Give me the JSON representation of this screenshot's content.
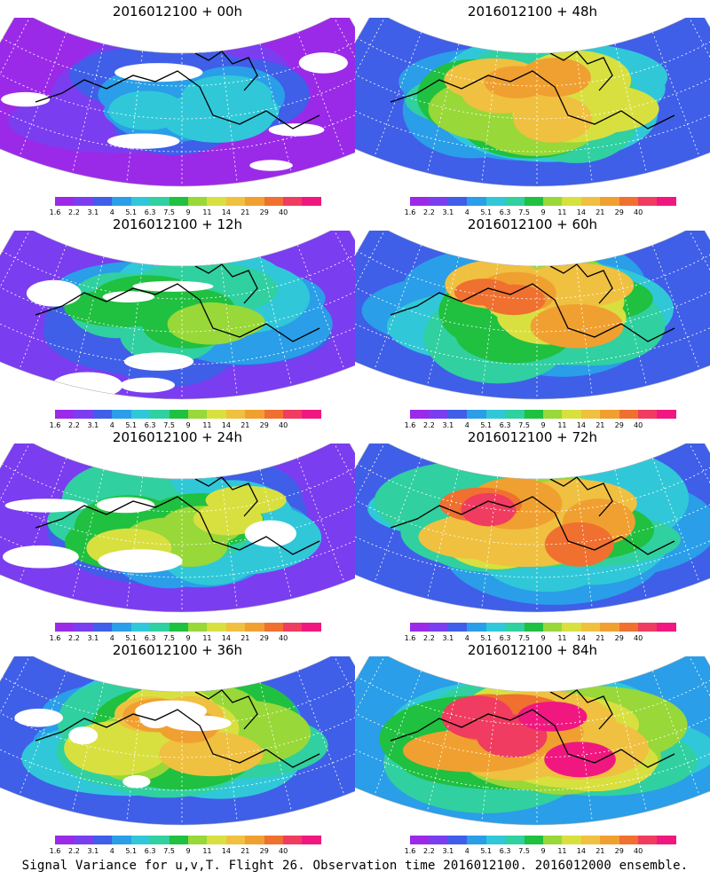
{
  "panels": [
    {
      "title": "2016012100 + 00h",
      "intensity": 0.15
    },
    {
      "title": "2016012100 + 48h",
      "intensity": 0.6
    },
    {
      "title": "2016012100 + 12h",
      "intensity": 0.3
    },
    {
      "title": "2016012100 + 60h",
      "intensity": 0.7
    },
    {
      "title": "2016012100 + 24h",
      "intensity": 0.4
    },
    {
      "title": "2016012100 + 72h",
      "intensity": 0.8
    },
    {
      "title": "2016012100 + 36h",
      "intensity": 0.5
    },
    {
      "title": "2016012100 + 84h",
      "intensity": 0.9
    }
  ],
  "colorbar": {
    "labels": [
      "1.6",
      "2.2",
      "3.1",
      "4",
      "5.1",
      "6.3",
      "7.5",
      "9",
      "11",
      "14",
      "21",
      "29",
      "40"
    ],
    "colors": [
      "#9b2ae8",
      "#7b3df0",
      "#3f5fe8",
      "#2a9ee8",
      "#30c8d8",
      "#30d0a0",
      "#20c040",
      "#98d838",
      "#d8e040",
      "#f0c040",
      "#f0a030",
      "#f07030",
      "#f03c60",
      "#f01880"
    ]
  },
  "caption": "Signal Variance for u,v,T. Flight 26. Observation time 2016012100. 2016012000 ensemble."
}
